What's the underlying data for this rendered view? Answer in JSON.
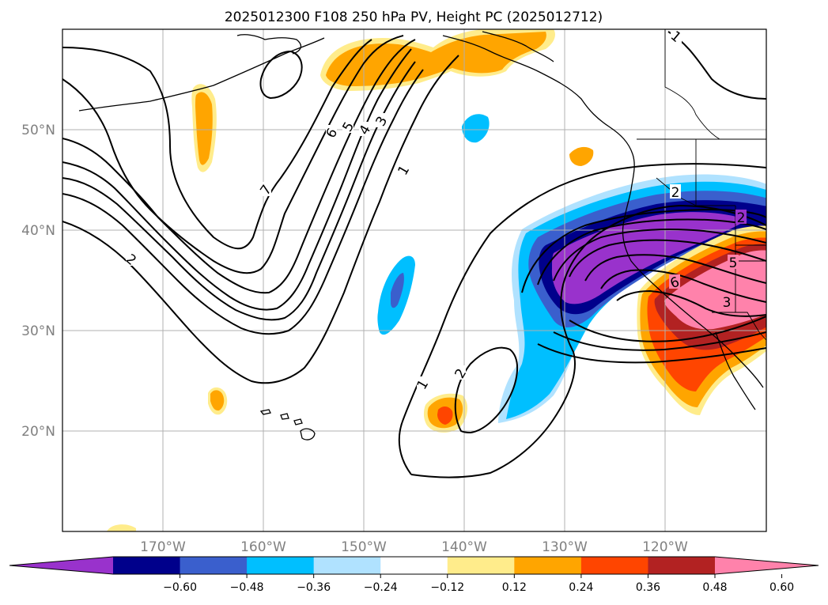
{
  "title": "2025012300 F108 250 hPa PV, Height PC (2025012712)",
  "axes": {
    "lat_labels": [
      "50°N",
      "40°N",
      "30°N",
      "20°N"
    ],
    "lon_labels": [
      "170°W",
      "160°W",
      "150°W",
      "140°W",
      "130°W",
      "120°W"
    ],
    "lat_values": [
      50,
      40,
      30,
      20
    ],
    "lon_values": [
      -170,
      -160,
      -150,
      -140,
      -130,
      -120
    ],
    "lon_range": [
      -180,
      -110
    ],
    "lat_range": [
      10,
      60
    ],
    "grid": true
  },
  "colorbar": {
    "ticks": [
      "−0.60",
      "−0.48",
      "−0.36",
      "−0.24",
      "−0.12",
      "0.12",
      "0.24",
      "0.36",
      "0.48",
      "0.60"
    ],
    "colors": [
      "#9932CC",
      "#00008B",
      "#3A5FCD",
      "#00BFFF",
      "#B0E2FF",
      "#FFFFFF",
      "#FFEC8B",
      "#FFA500",
      "#FF4500",
      "#B22222",
      "#FF82AB"
    ],
    "extend": "both"
  },
  "contour_labels": [
    "7",
    "6",
    "5",
    "4",
    "3",
    "1",
    "2",
    "2",
    "1",
    "2",
    "6",
    "5",
    "3",
    "2",
    "1"
  ]
}
